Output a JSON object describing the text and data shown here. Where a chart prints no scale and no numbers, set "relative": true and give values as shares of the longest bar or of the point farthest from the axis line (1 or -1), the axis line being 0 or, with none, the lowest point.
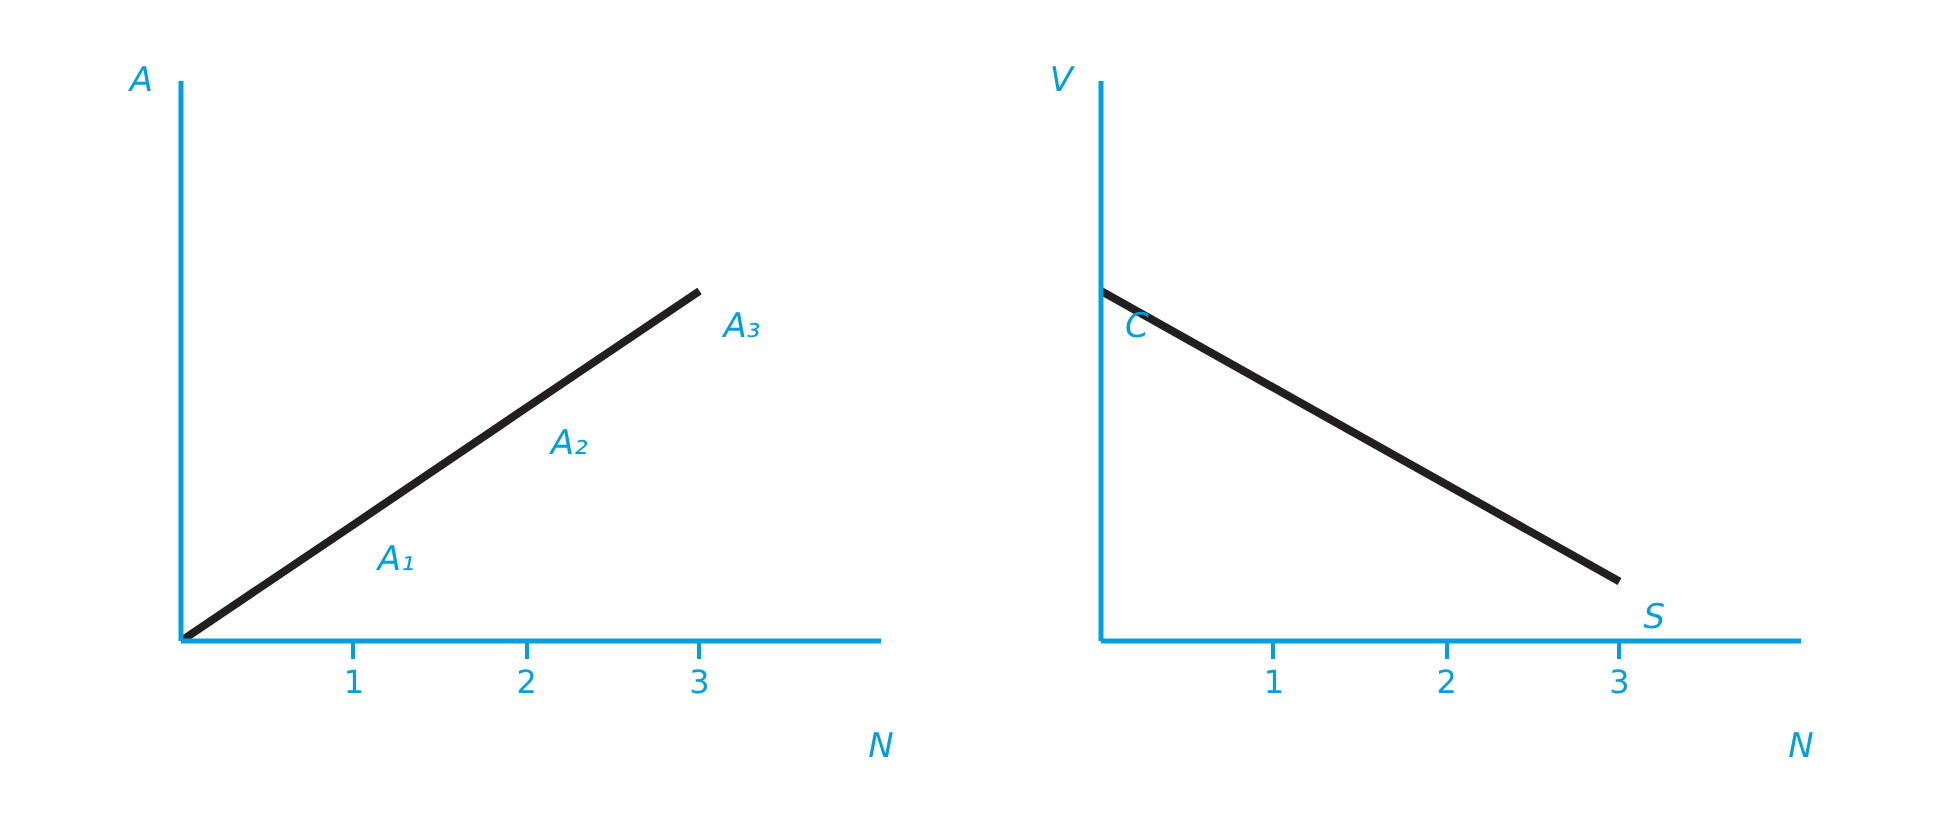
{
  "chart_data": [
    {
      "type": "line",
      "relative": true,
      "ylabel": "A",
      "xlabel": "N",
      "x": [
        0,
        1,
        2,
        3
      ],
      "xlim": [
        0,
        4.05
      ],
      "xticks": [
        1,
        2,
        3
      ],
      "tick_labels": "x",
      "series": [
        {
          "color": "#231f20",
          "values": [
            0,
            0.333,
            0.667,
            1
          ]
        }
      ],
      "annotations": [
        {
          "text": "A₁",
          "x": 1,
          "y": 0.333
        },
        {
          "text": "A₂",
          "x": 2,
          "y": 0.667
        },
        {
          "text": "A₃",
          "x": 3,
          "y": 1
        }
      ]
    },
    {
      "type": "line",
      "relative": true,
      "ylabel": "V",
      "xlabel": "N",
      "x": [
        0,
        3
      ],
      "xlim": [
        0,
        4.05
      ],
      "xticks": [
        1,
        2,
        3
      ],
      "tick_labels": "x",
      "series": [
        {
          "color": "#231f20",
          "values": [
            1,
            0.17
          ]
        }
      ],
      "annotations": [
        {
          "text": "C",
          "x": 0,
          "y": 1
        },
        {
          "text": "S",
          "x": 3,
          "y": 0.17
        }
      ]
    }
  ]
}
